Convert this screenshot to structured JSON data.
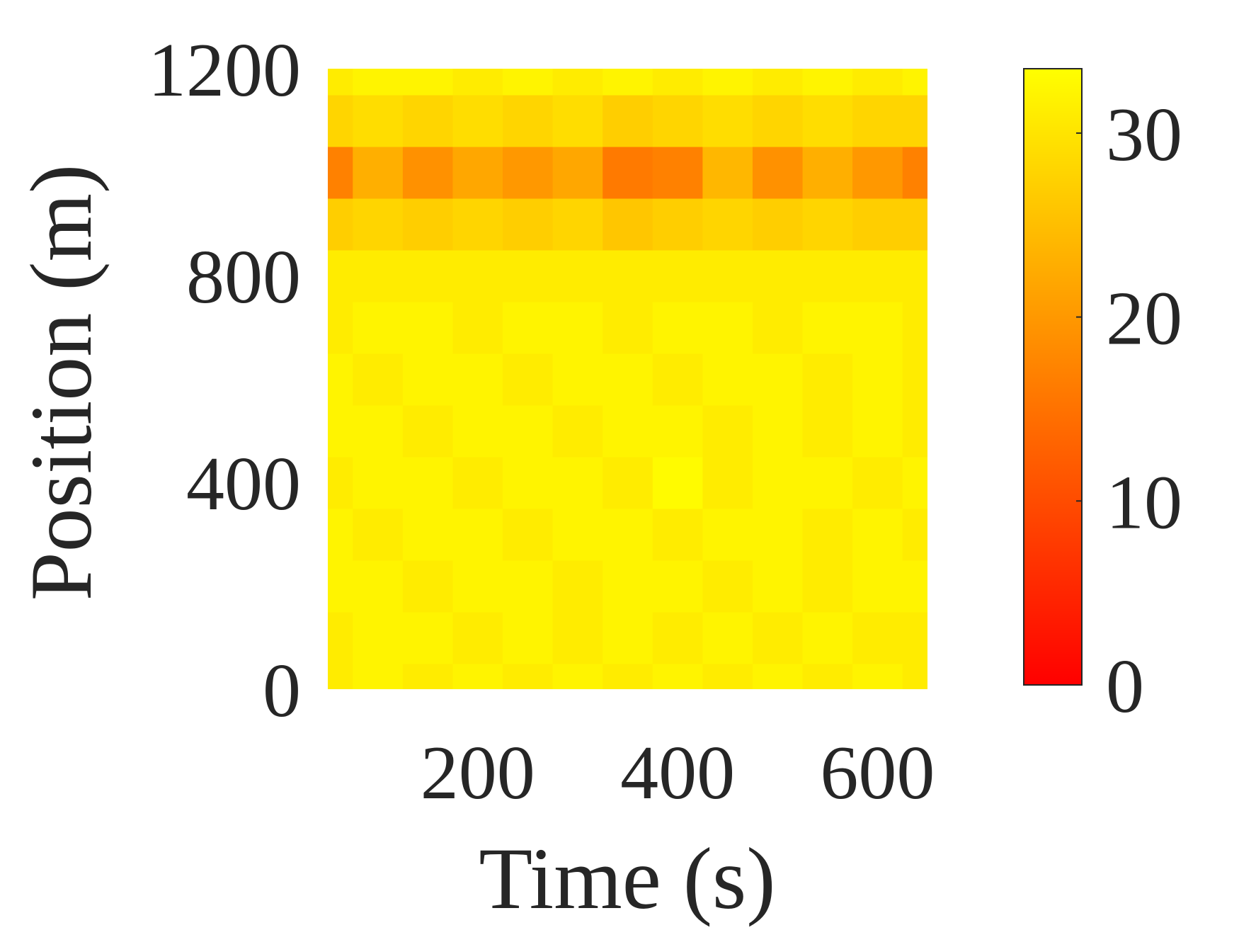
{
  "chart_data": {
    "type": "heatmap",
    "xlabel": "Time (s)",
    "ylabel": "Position (m)",
    "xlim": [
      50,
      650
    ],
    "ylim": [
      0,
      1200
    ],
    "x_ticks": [
      "200",
      "400",
      "600"
    ],
    "x_tick_values": [
      200,
      400,
      600
    ],
    "y_ticks": [
      "0",
      "400",
      "800",
      "1200"
    ],
    "y_tick_values": [
      0,
      400,
      800,
      1200
    ],
    "colorbar": {
      "colormap": "autumn",
      "low_color": "#ff0000",
      "high_color": "#ffff00",
      "range": [
        0,
        33.5
      ],
      "ticks": [
        "0",
        "10",
        "20",
        "30"
      ],
      "tick_values": [
        0,
        10,
        20,
        30
      ]
    },
    "x": [
      50,
      100,
      150,
      200,
      250,
      300,
      350,
      400,
      450,
      500,
      550,
      600,
      650
    ],
    "y": [
      0,
      100,
      200,
      300,
      400,
      500,
      600,
      700,
      800,
      900,
      1000,
      1100,
      1200
    ],
    "z": [
      [
        31,
        32,
        31,
        32,
        31,
        32,
        31,
        32,
        31,
        32,
        31,
        32,
        31
      ],
      [
        31,
        32,
        32,
        31,
        32,
        31,
        32,
        31,
        32,
        31,
        32,
        31,
        31
      ],
      [
        32,
        32,
        31,
        32,
        32,
        31,
        32,
        32,
        31,
        32,
        31,
        32,
        32
      ],
      [
        32,
        31,
        32,
        32,
        31,
        32,
        32,
        31,
        32,
        32,
        31,
        32,
        31
      ],
      [
        31,
        32,
        32,
        31,
        32,
        32,
        31,
        33,
        31,
        32,
        32,
        31,
        32
      ],
      [
        32,
        32,
        31,
        32,
        32,
        31,
        32,
        32,
        31,
        32,
        31,
        32,
        31
      ],
      [
        32,
        31,
        32,
        32,
        31,
        32,
        32,
        31,
        32,
        32,
        31,
        32,
        31
      ],
      [
        31,
        32,
        32,
        31,
        32,
        32,
        31,
        32,
        32,
        31,
        32,
        32,
        31
      ],
      [
        31,
        31,
        31,
        31,
        31,
        31,
        31,
        31,
        31,
        31,
        31,
        31,
        31
      ],
      [
        27,
        28,
        27,
        28,
        27,
        28,
        26,
        27,
        28,
        27,
        28,
        27,
        27
      ],
      [
        17,
        23,
        19,
        22,
        20,
        22,
        16,
        17,
        24,
        19,
        23,
        20,
        17
      ],
      [
        28,
        29,
        28,
        29,
        28,
        29,
        27,
        28,
        29,
        28,
        29,
        28,
        28
      ],
      [
        31,
        32,
        32,
        31,
        32,
        31,
        32,
        31,
        32,
        31,
        32,
        31,
        32
      ]
    ]
  }
}
